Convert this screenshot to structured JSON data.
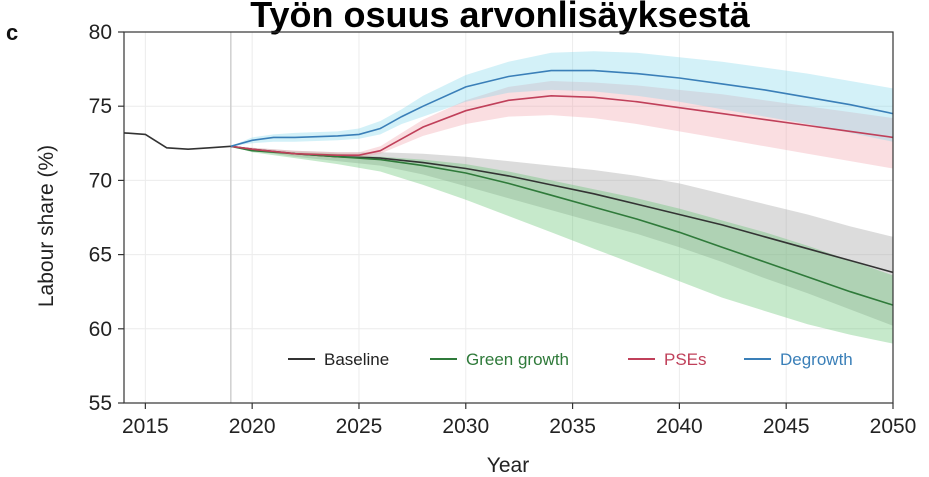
{
  "chart_data": {
    "type": "line",
    "panel_letter": "c",
    "title": "Työn osuus arvonlisäyksestä",
    "xlabel": "Year",
    "ylabel": "Labour share (%)",
    "xlim": [
      2014,
      2050
    ],
    "ylim": [
      55,
      80
    ],
    "xticks": [
      2015,
      2020,
      2025,
      2030,
      2035,
      2040,
      2045,
      2050
    ],
    "yticks": [
      55,
      60,
      65,
      70,
      75,
      80
    ],
    "grid": true,
    "legend_position": "bottom-right",
    "projection_start": 2019,
    "historical": {
      "x": [
        2014,
        2015,
        2016,
        2017,
        2018,
        2019
      ],
      "y": [
        73.2,
        73.1,
        72.2,
        72.1,
        72.2,
        72.3
      ]
    },
    "series": [
      {
        "name": "Baseline",
        "color": "#333333",
        "band_color": "#9a9a9a",
        "x": [
          2019,
          2020,
          2022,
          2024,
          2026,
          2028,
          2030,
          2032,
          2034,
          2036,
          2038,
          2040,
          2042,
          2044,
          2046,
          2048,
          2050
        ],
        "y": [
          72.3,
          72.1,
          71.8,
          71.6,
          71.5,
          71.2,
          70.8,
          70.3,
          69.7,
          69.1,
          68.4,
          67.7,
          67.0,
          66.2,
          65.4,
          64.6,
          63.8
        ],
        "lower": [
          72.3,
          72.0,
          71.6,
          71.3,
          71.0,
          70.4,
          69.6,
          68.8,
          68.0,
          67.2,
          66.4,
          65.5,
          64.5,
          63.4,
          62.4,
          61.3,
          60.2
        ],
        "upper": [
          72.3,
          72.2,
          72.0,
          71.9,
          71.9,
          71.8,
          71.6,
          71.3,
          71.0,
          70.7,
          70.3,
          69.8,
          69.1,
          68.4,
          67.7,
          66.9,
          66.2
        ]
      },
      {
        "name": "Green growth",
        "color": "#2f7a3a",
        "band_color": "#5cbf69",
        "x": [
          2019,
          2020,
          2022,
          2024,
          2026,
          2028,
          2030,
          2032,
          2034,
          2036,
          2038,
          2040,
          2042,
          2044,
          2046,
          2048,
          2050
        ],
        "y": [
          72.3,
          72.0,
          71.8,
          71.6,
          71.4,
          71.0,
          70.5,
          69.8,
          69.0,
          68.2,
          67.4,
          66.5,
          65.5,
          64.5,
          63.5,
          62.5,
          61.6
        ],
        "lower": [
          72.3,
          71.9,
          71.5,
          71.1,
          70.6,
          69.7,
          68.7,
          67.6,
          66.5,
          65.4,
          64.3,
          63.2,
          62.1,
          61.2,
          60.3,
          59.6,
          59.0
        ],
        "upper": [
          72.3,
          72.1,
          71.9,
          71.8,
          71.6,
          71.4,
          71.1,
          70.6,
          70.0,
          69.4,
          68.8,
          68.1,
          67.3,
          66.5,
          65.6,
          64.6,
          63.6
        ]
      },
      {
        "name": "PSEs",
        "color": "#c0405a",
        "band_color": "#f0a0a8",
        "x": [
          2019,
          2020,
          2022,
          2024,
          2025,
          2026,
          2027,
          2028,
          2030,
          2032,
          2034,
          2036,
          2038,
          2040,
          2042,
          2044,
          2046,
          2048,
          2050
        ],
        "y": [
          72.3,
          72.1,
          71.8,
          71.7,
          71.7,
          72.0,
          72.8,
          73.6,
          74.7,
          75.4,
          75.7,
          75.6,
          75.3,
          74.9,
          74.5,
          74.1,
          73.7,
          73.3,
          72.9
        ],
        "lower": [
          72.3,
          72.0,
          71.7,
          71.5,
          71.5,
          71.8,
          72.4,
          73.0,
          73.8,
          74.3,
          74.4,
          74.2,
          73.8,
          73.3,
          72.8,
          72.3,
          71.8,
          71.3,
          70.8
        ],
        "upper": [
          72.3,
          72.2,
          72.0,
          71.9,
          71.9,
          72.3,
          73.2,
          74.1,
          75.4,
          76.3,
          76.7,
          76.6,
          76.4,
          76.1,
          75.8,
          75.4,
          75.0,
          74.6,
          74.2
        ]
      },
      {
        "name": "Degrowth",
        "color": "#3a7fb8",
        "band_color": "#80d8ec",
        "x": [
          2019,
          2020,
          2021,
          2022,
          2024,
          2025,
          2026,
          2027,
          2028,
          2030,
          2032,
          2034,
          2036,
          2038,
          2040,
          2042,
          2044,
          2046,
          2048,
          2050
        ],
        "y": [
          72.3,
          72.7,
          72.9,
          72.9,
          73.0,
          73.1,
          73.5,
          74.3,
          75.0,
          76.3,
          77.0,
          77.4,
          77.4,
          77.2,
          76.9,
          76.5,
          76.1,
          75.6,
          75.1,
          74.5
        ],
        "lower": [
          72.3,
          72.5,
          72.6,
          72.6,
          72.7,
          72.8,
          73.1,
          73.8,
          74.3,
          75.3,
          75.9,
          76.1,
          76.0,
          75.7,
          75.3,
          74.8,
          74.3,
          73.8,
          73.2,
          72.6
        ],
        "upper": [
          72.3,
          72.9,
          73.1,
          73.2,
          73.3,
          73.5,
          74.0,
          74.8,
          75.7,
          77.1,
          78.0,
          78.6,
          78.7,
          78.6,
          78.3,
          78.0,
          77.6,
          77.2,
          76.7,
          76.2
        ]
      }
    ]
  }
}
